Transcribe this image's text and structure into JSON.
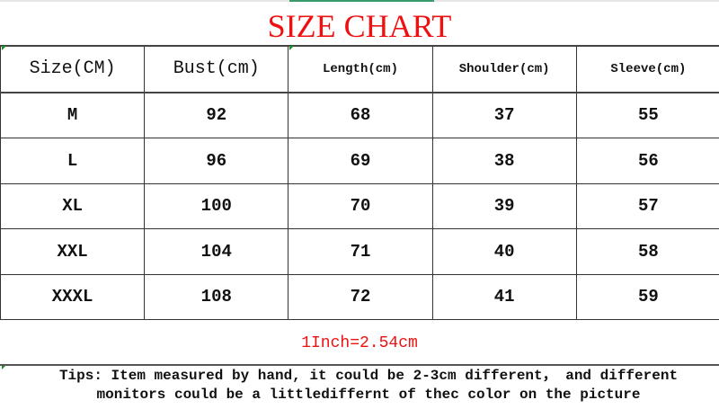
{
  "title": "SIZE CHART",
  "title_color": "#ee1111",
  "table": {
    "headers": [
      "Size(CM)",
      "Bust(cm)",
      "Length(cm)",
      "Shoulder(cm)",
      "Sleeve(cm)"
    ],
    "rows": [
      [
        "M",
        "92",
        "68",
        "37",
        "55"
      ],
      [
        "L",
        "96",
        "69",
        "38",
        "56"
      ],
      [
        "XL",
        "100",
        "70",
        "39",
        "57"
      ],
      [
        "XXL",
        "104",
        "71",
        "40",
        "58"
      ],
      [
        "XXXL",
        "108",
        "72",
        "41",
        "59"
      ]
    ]
  },
  "conversion": "1Inch=2.54cm",
  "tips": {
    "line1": "Tips: Item measured by hand, it could be 2-3cm different， and different",
    "line2": "monitors could be a littlediffernt of thec color on the picture"
  }
}
